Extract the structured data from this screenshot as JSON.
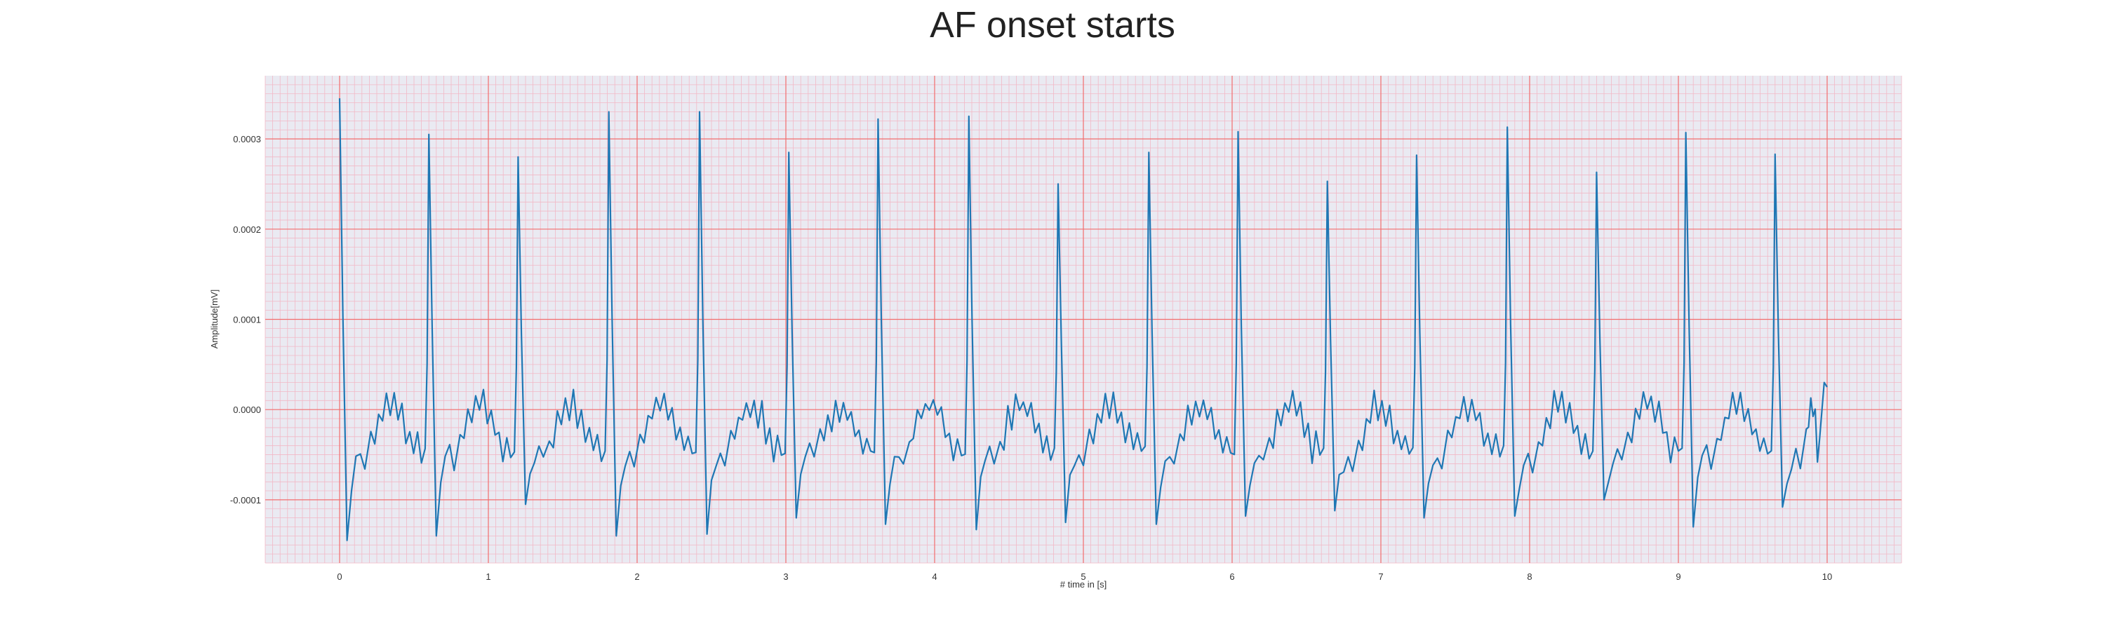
{
  "chart_data": {
    "type": "line",
    "title": "AF onset starts",
    "xlabel": "# time in [s]",
    "ylabel": "Amplitude[mV]",
    "xlim": [
      -0.5,
      10.5
    ],
    "ylim": [
      -0.00017,
      0.00037
    ],
    "x_ticks": [
      0,
      1,
      2,
      3,
      4,
      5,
      6,
      7,
      8,
      9,
      10
    ],
    "x_tick_labels": [
      "0",
      "1",
      "2",
      "3",
      "4",
      "5",
      "6",
      "7",
      "8",
      "9",
      "10"
    ],
    "y_ticks": [
      -0.0001,
      0.0,
      0.0001,
      0.0002,
      0.0003
    ],
    "y_tick_labels": [
      "-0.0001",
      "0.0000",
      "0.0001",
      "0.0002",
      "0.0003"
    ],
    "grid": true,
    "minor_grid": true,
    "colors": {
      "line": "#1f77b4",
      "major_grid": "#f26d6d",
      "minor_grid": "#f2b8c6",
      "background": "#eaeaf2"
    },
    "series": [
      {
        "name": "",
        "r_peaks": [
          [
            0.0,
            0.000345
          ],
          [
            0.6,
            0.000305
          ],
          [
            1.2,
            0.00028
          ],
          [
            1.81,
            0.00033
          ],
          [
            2.42,
            0.00033
          ],
          [
            3.02,
            0.000285
          ],
          [
            3.62,
            0.000322
          ],
          [
            4.23,
            0.000325
          ],
          [
            4.83,
            0.00025
          ],
          [
            5.44,
            0.000285
          ],
          [
            6.04,
            0.000308
          ],
          [
            6.64,
            0.000253
          ],
          [
            7.24,
            0.000282
          ],
          [
            7.85,
            0.000313
          ],
          [
            8.45,
            0.000263
          ],
          [
            9.05,
            0.000307
          ],
          [
            9.65,
            0.000283
          ]
        ],
        "s_troughs": [
          [
            0.05,
            -0.000145
          ],
          [
            0.65,
            -0.00014
          ],
          [
            1.25,
            -0.000105
          ],
          [
            1.86,
            -0.00014
          ],
          [
            2.47,
            -0.000138
          ],
          [
            3.07,
            -0.00012
          ],
          [
            3.67,
            -0.000127
          ],
          [
            4.28,
            -0.000133
          ],
          [
            4.88,
            -0.000125
          ],
          [
            5.49,
            -0.000127
          ],
          [
            6.09,
            -0.000118
          ],
          [
            6.69,
            -0.000112
          ],
          [
            7.29,
            -0.00012
          ],
          [
            7.9,
            -0.000118
          ],
          [
            8.5,
            -0.0001
          ],
          [
            9.1,
            -0.00013
          ],
          [
            9.7,
            -0.000108
          ]
        ],
        "end_point": [
          10.0,
          2.5e-05
        ]
      }
    ]
  }
}
